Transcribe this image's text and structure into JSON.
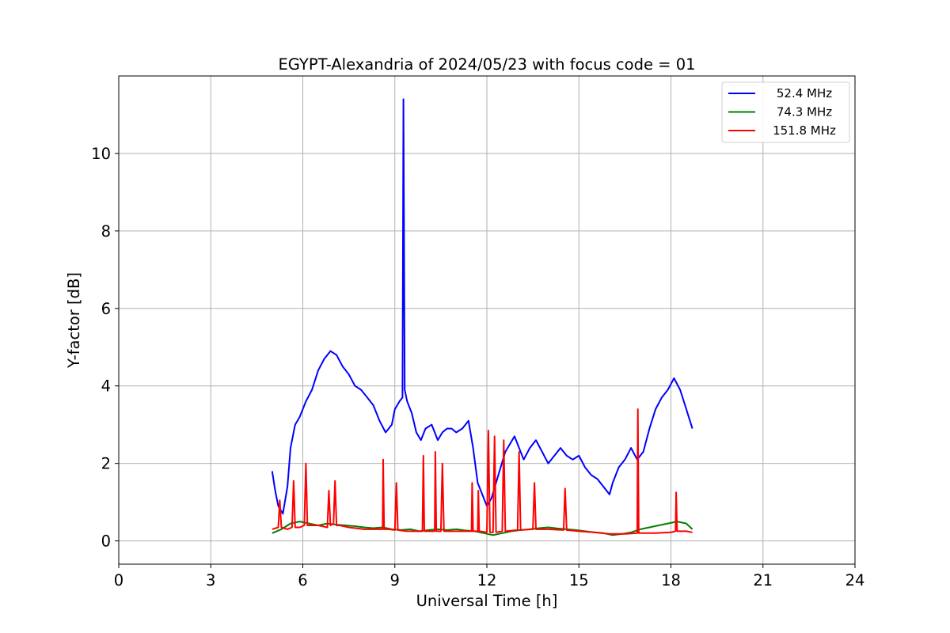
{
  "chart_data": {
    "type": "line",
    "title": "EGYPT-Alexandria of 2024/05/23 with focus code = 01",
    "xlabel": "Universal Time [h]",
    "ylabel": "Y-factor [dB]",
    "xlim": [
      0,
      24
    ],
    "ylim": [
      -0.6,
      12
    ],
    "xticks": [
      "0",
      "3",
      "6",
      "9",
      "12",
      "15",
      "18",
      "21",
      "24"
    ],
    "yticks": [
      "0",
      "2",
      "4",
      "6",
      "8",
      "10"
    ],
    "grid": true,
    "legend_position": "top-right",
    "series": [
      {
        "name": "  52.4 MHz",
        "color": "#0000ff",
        "x": [
          5.0,
          5.1,
          5.2,
          5.35,
          5.5,
          5.6,
          5.75,
          5.9,
          6.1,
          6.3,
          6.5,
          6.7,
          6.9,
          7.1,
          7.3,
          7.5,
          7.7,
          7.9,
          8.1,
          8.3,
          8.5,
          8.7,
          8.9,
          9.0,
          9.15,
          9.25,
          9.28,
          9.32,
          9.4,
          9.55,
          9.7,
          9.85,
          10.0,
          10.2,
          10.4,
          10.55,
          10.7,
          10.85,
          11.0,
          11.2,
          11.4,
          11.55,
          11.7,
          11.85,
          12.0,
          12.15,
          12.3,
          12.45,
          12.6,
          12.75,
          12.9,
          13.05,
          13.2,
          13.4,
          13.6,
          13.8,
          14.0,
          14.2,
          14.4,
          14.6,
          14.8,
          15.0,
          15.2,
          15.4,
          15.6,
          15.8,
          16.0,
          16.1,
          16.3,
          16.5,
          16.7,
          16.9,
          17.1,
          17.3,
          17.5,
          17.7,
          17.9,
          18.1,
          18.3,
          18.5,
          18.7
        ],
        "y": [
          1.8,
          1.3,
          0.9,
          0.7,
          1.4,
          2.4,
          3.0,
          3.2,
          3.6,
          3.9,
          4.4,
          4.7,
          4.9,
          4.8,
          4.5,
          4.3,
          4.0,
          3.9,
          3.7,
          3.5,
          3.1,
          2.8,
          3.0,
          3.4,
          3.6,
          3.7,
          11.4,
          3.9,
          3.6,
          3.3,
          2.8,
          2.6,
          2.9,
          3.0,
          2.6,
          2.8,
          2.9,
          2.9,
          2.8,
          2.9,
          3.1,
          2.4,
          1.5,
          1.2,
          0.9,
          1.1,
          1.5,
          1.9,
          2.3,
          2.5,
          2.7,
          2.4,
          2.1,
          2.4,
          2.6,
          2.3,
          2.0,
          2.2,
          2.4,
          2.2,
          2.1,
          2.2,
          1.9,
          1.7,
          1.6,
          1.4,
          1.2,
          1.5,
          1.9,
          2.1,
          2.4,
          2.1,
          2.3,
          2.9,
          3.4,
          3.7,
          3.9,
          4.2,
          3.9,
          3.4,
          2.9
        ]
      },
      {
        "name": "  74.3 MHz",
        "color": "#008000",
        "x": [
          5.0,
          5.3,
          5.6,
          5.9,
          6.2,
          6.5,
          6.8,
          7.1,
          7.4,
          7.7,
          8.0,
          8.3,
          8.6,
          8.9,
          9.2,
          9.5,
          9.8,
          10.1,
          10.4,
          10.7,
          11.0,
          11.3,
          11.6,
          11.9,
          12.2,
          12.5,
          12.8,
          13.1,
          13.4,
          13.7,
          14.0,
          14.3,
          14.6,
          14.9,
          15.2,
          15.5,
          15.8,
          16.1,
          16.4,
          16.7,
          17.0,
          17.3,
          17.6,
          17.9,
          18.2,
          18.5,
          18.7
        ],
        "y": [
          0.2,
          0.3,
          0.45,
          0.5,
          0.45,
          0.4,
          0.45,
          0.42,
          0.4,
          0.38,
          0.35,
          0.33,
          0.35,
          0.3,
          0.28,
          0.3,
          0.25,
          0.28,
          0.3,
          0.28,
          0.3,
          0.27,
          0.25,
          0.2,
          0.15,
          0.2,
          0.25,
          0.28,
          0.3,
          0.33,
          0.35,
          0.32,
          0.3,
          0.28,
          0.25,
          0.22,
          0.2,
          0.15,
          0.18,
          0.22,
          0.3,
          0.35,
          0.4,
          0.45,
          0.5,
          0.45,
          0.3
        ]
      },
      {
        "name": "151.8 MHz",
        "color": "#ff0000",
        "x": [
          5.0,
          5.2,
          5.25,
          5.3,
          5.5,
          5.65,
          5.7,
          5.75,
          5.9,
          6.05,
          6.1,
          6.15,
          6.5,
          6.8,
          6.85,
          6.9,
          7.0,
          7.05,
          7.1,
          7.2,
          7.5,
          8.0,
          8.6,
          8.62,
          8.65,
          8.8,
          9.0,
          9.05,
          9.1,
          9.4,
          9.9,
          9.93,
          9.96,
          10.2,
          10.3,
          10.32,
          10.35,
          10.5,
          10.55,
          10.6,
          11.0,
          11.5,
          11.52,
          11.55,
          11.7,
          11.72,
          11.75,
          12.0,
          12.05,
          12.1,
          12.2,
          12.25,
          12.3,
          12.5,
          12.55,
          12.6,
          13.0,
          13.05,
          13.1,
          13.5,
          13.55,
          13.6,
          14.0,
          14.5,
          14.55,
          14.6,
          15.0,
          15.5,
          16.0,
          16.5,
          16.9,
          16.92,
          16.95,
          17.5,
          18.0,
          18.15,
          18.17,
          18.2,
          18.5,
          18.7
        ],
        "y": [
          0.3,
          0.35,
          1.05,
          0.35,
          0.3,
          0.35,
          1.55,
          0.35,
          0.35,
          0.4,
          2.0,
          0.4,
          0.4,
          0.35,
          1.3,
          0.4,
          0.45,
          1.55,
          0.4,
          0.4,
          0.35,
          0.3,
          0.3,
          2.1,
          0.3,
          0.3,
          0.28,
          1.5,
          0.28,
          0.25,
          0.25,
          2.2,
          0.25,
          0.25,
          0.25,
          2.3,
          0.25,
          0.25,
          2.0,
          0.25,
          0.25,
          0.25,
          1.5,
          0.25,
          0.25,
          1.3,
          0.25,
          0.22,
          2.85,
          0.22,
          0.22,
          2.7,
          0.22,
          0.25,
          2.6,
          0.25,
          0.28,
          2.3,
          0.28,
          0.3,
          1.5,
          0.3,
          0.3,
          0.28,
          1.35,
          0.28,
          0.25,
          0.22,
          0.18,
          0.18,
          0.2,
          3.4,
          0.2,
          0.2,
          0.22,
          0.25,
          1.25,
          0.25,
          0.25,
          0.22
        ]
      }
    ]
  }
}
